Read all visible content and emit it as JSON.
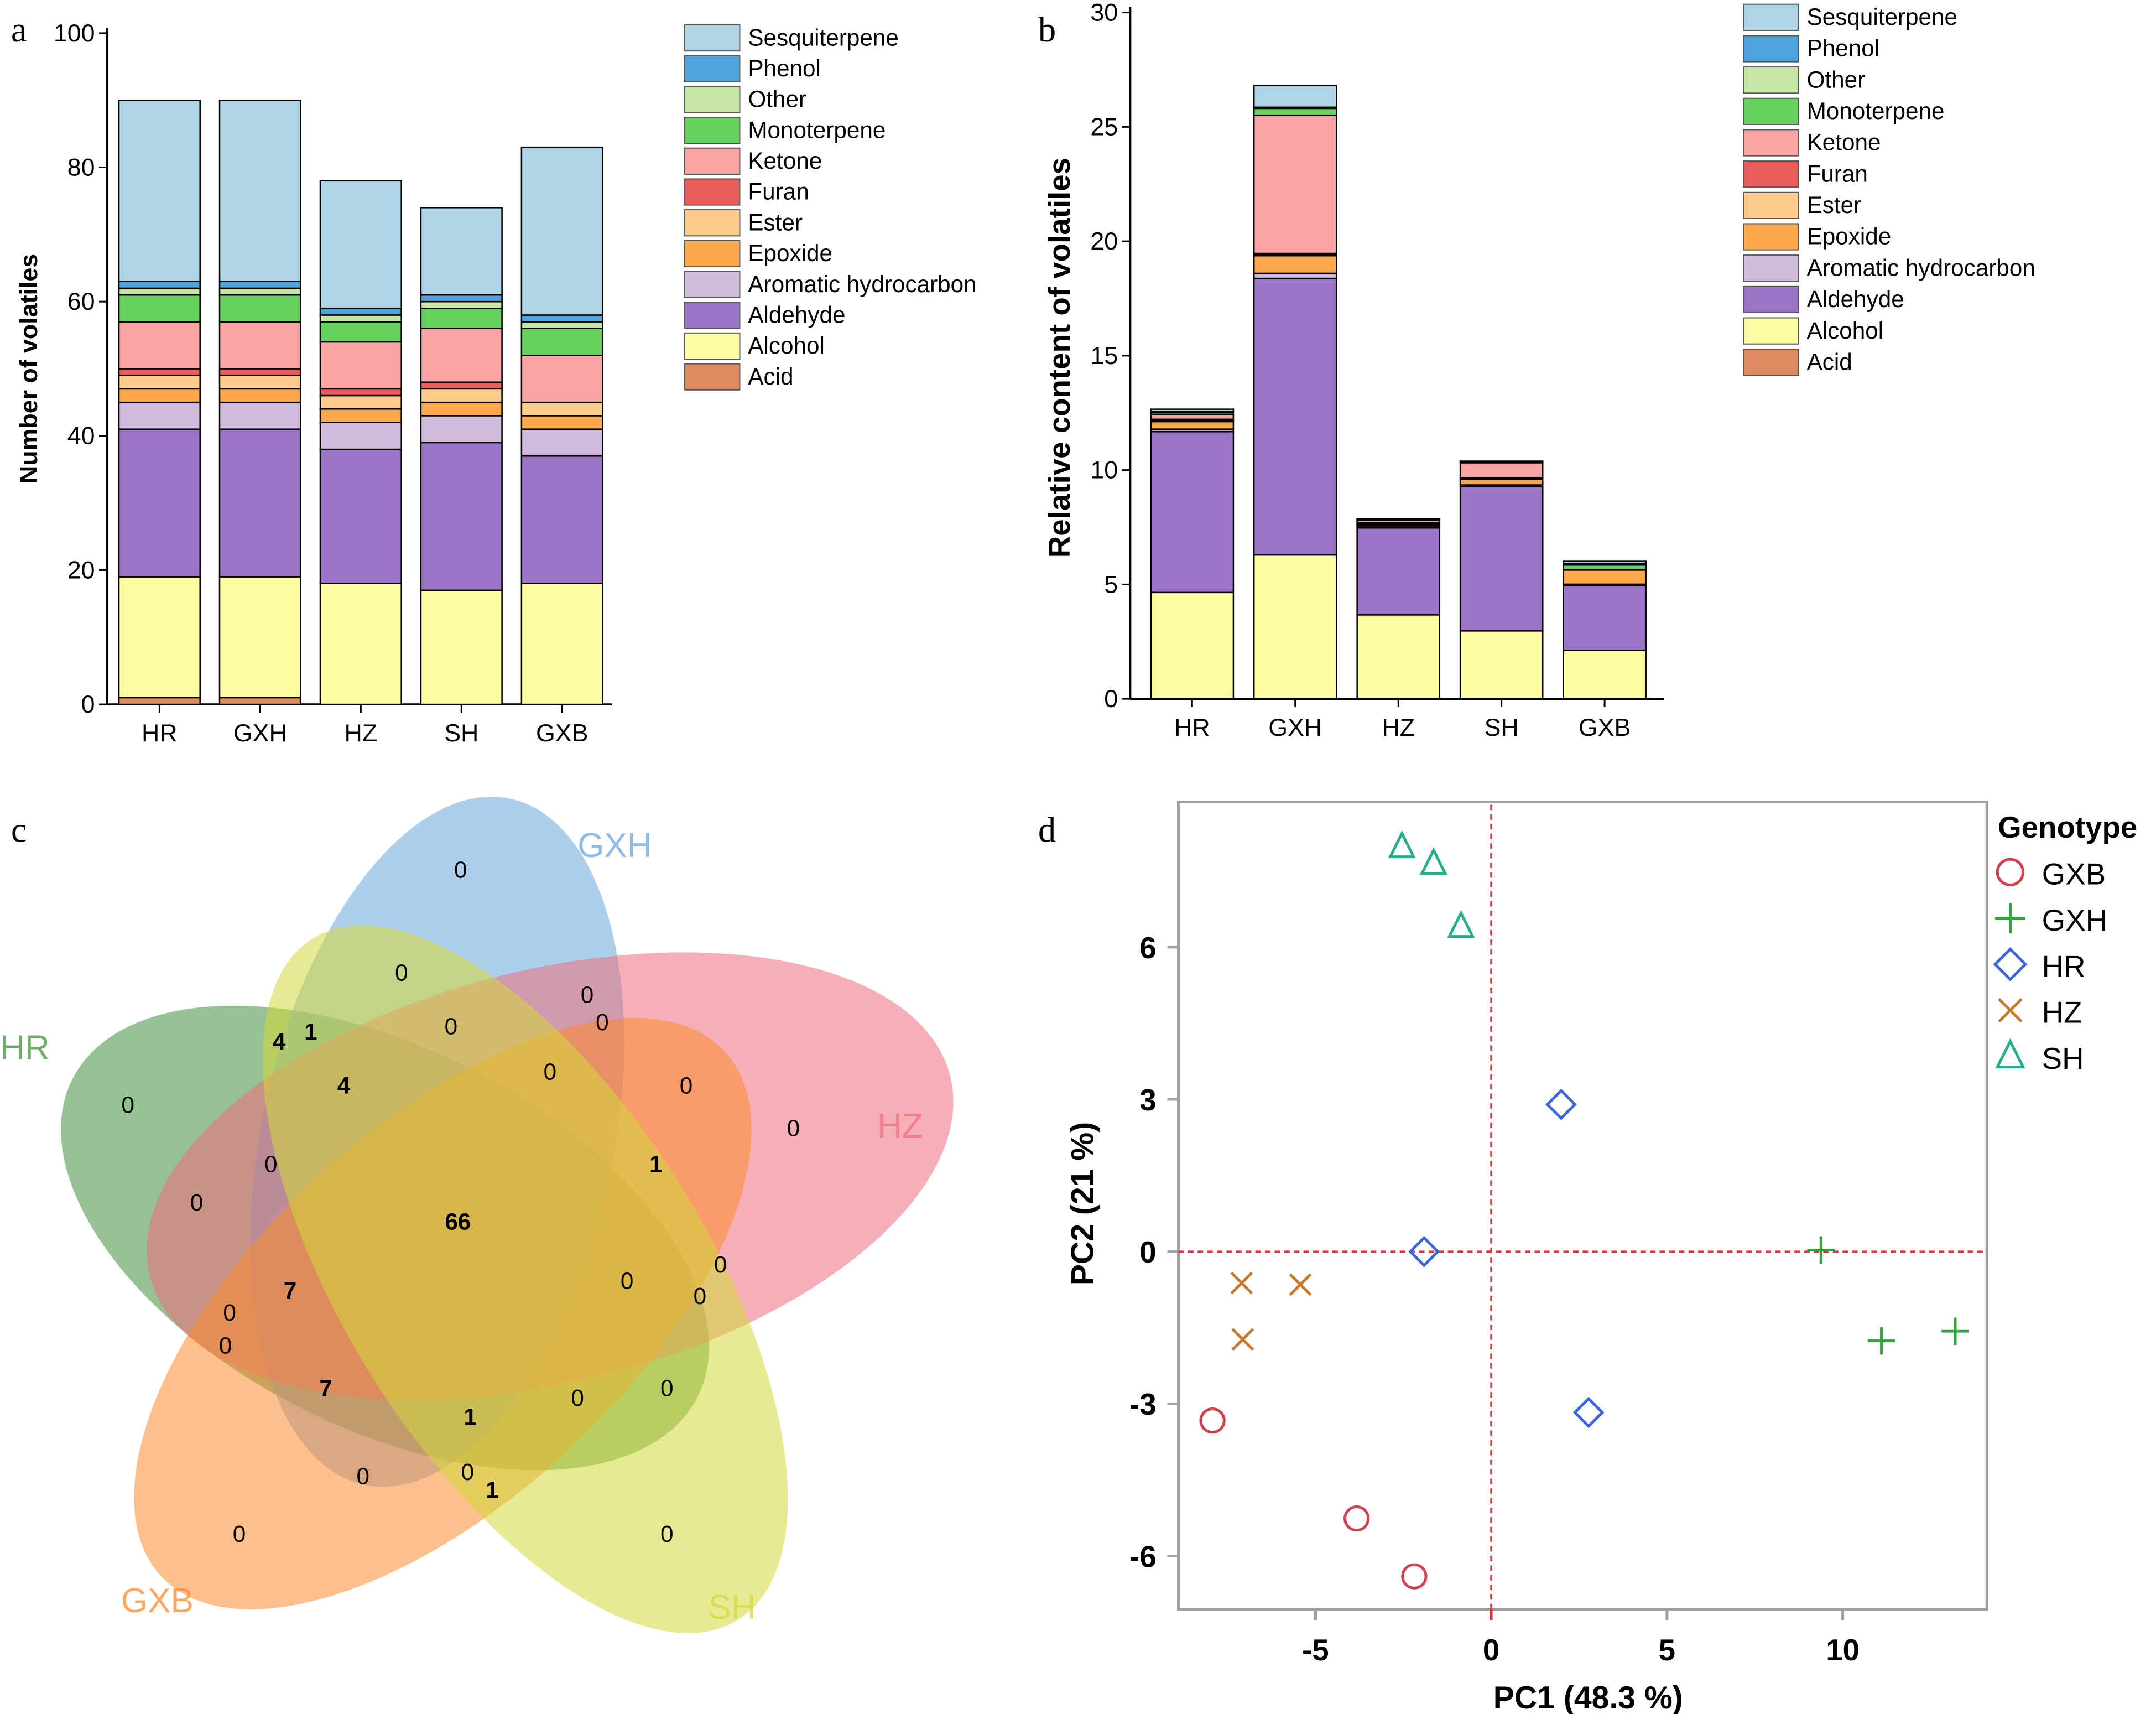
{
  "panels": {
    "a": "a",
    "b": "b",
    "c": "c",
    "d": "d"
  },
  "chart_data": [
    {
      "panel": "a",
      "type": "bar",
      "stacked": true,
      "ylabel": "Number of volatiles",
      "xlabel": "",
      "ylim": [
        0,
        100
      ],
      "yticks": [
        0,
        20,
        40,
        60,
        80,
        100
      ],
      "categories": [
        "HR",
        "GXH",
        "HZ",
        "SH",
        "GXB"
      ],
      "legend_position": "top-right",
      "series": [
        {
          "name": "Acid",
          "color": "#dd8a5e",
          "values": [
            1,
            1,
            0,
            0,
            0
          ]
        },
        {
          "name": "Alcohol",
          "color": "#fdfca0",
          "values": [
            18,
            18,
            18,
            17,
            18
          ]
        },
        {
          "name": "Aldehyde",
          "color": "#9b74c7",
          "values": [
            22,
            22,
            20,
            22,
            19
          ]
        },
        {
          "name": "Aromatic hydrocarbon",
          "color": "#d0bbdc",
          "values": [
            4,
            4,
            4,
            4,
            4
          ]
        },
        {
          "name": "Epoxide",
          "color": "#fea74d",
          "values": [
            2,
            2,
            2,
            2,
            2
          ]
        },
        {
          "name": "Ester",
          "color": "#fdcd8e",
          "values": [
            2,
            2,
            2,
            2,
            2
          ]
        },
        {
          "name": "Furan",
          "color": "#ea5b5b",
          "values": [
            1,
            1,
            1,
            1,
            0
          ]
        },
        {
          "name": "Ketone",
          "color": "#f9a4a4",
          "values": [
            7,
            7,
            7,
            8,
            7
          ]
        },
        {
          "name": "Monoterpene",
          "color": "#66d15e",
          "values": [
            4,
            4,
            3,
            3,
            4
          ]
        },
        {
          "name": "Other",
          "color": "#c5e6a5",
          "values": [
            1,
            1,
            1,
            1,
            1
          ]
        },
        {
          "name": "Phenol",
          "color": "#4fa3dc",
          "values": [
            1,
            1,
            1,
            1,
            1
          ]
        },
        {
          "name": "Sesquiterpene",
          "color": "#aed4e8",
          "values": [
            27,
            27,
            19,
            13,
            25
          ]
        }
      ]
    },
    {
      "panel": "b",
      "type": "bar",
      "stacked": true,
      "ylabel": "Relative content of volatiles",
      "xlabel": "",
      "ylim": [
        0,
        30
      ],
      "yticks": [
        0,
        5,
        10,
        15,
        20,
        25,
        30
      ],
      "categories": [
        "HR",
        "GXH",
        "HZ",
        "SH",
        "GXB"
      ],
      "legend_position": "top-right",
      "series": [
        {
          "name": "Acid",
          "color": "#dd8a5e",
          "values": [
            0,
            0,
            0,
            0,
            0
          ]
        },
        {
          "name": "Alcohol",
          "color": "#fdfca0",
          "values": [
            4.65,
            6.29,
            3.67,
            2.97,
            2.12
          ]
        },
        {
          "name": "Aldehyde",
          "color": "#9b74c7",
          "values": [
            7.03,
            12.09,
            3.8,
            6.31,
            2.84
          ]
        },
        {
          "name": "Aromatic hydrocarbon",
          "color": "#d0bbdc",
          "values": [
            0.11,
            0.22,
            0.05,
            0.07,
            0.05
          ]
        },
        {
          "name": "Epoxide",
          "color": "#fea74d",
          "values": [
            0.33,
            0.77,
            0.08,
            0.24,
            0.62
          ]
        },
        {
          "name": "Ester",
          "color": "#fdcd8e",
          "values": [
            0.05,
            0.05,
            0.04,
            0.03,
            0.02
          ]
        },
        {
          "name": "Furan",
          "color": "#ea5b5b",
          "values": [
            0.05,
            0.05,
            0.06,
            0.05,
            0
          ]
        },
        {
          "name": "Ketone",
          "color": "#f9a4a4",
          "values": [
            0.2,
            6.03,
            0.12,
            0.65,
            0
          ]
        },
        {
          "name": "Monoterpene",
          "color": "#66d15e",
          "values": [
            0.08,
            0.31,
            0.02,
            0.04,
            0.2
          ]
        },
        {
          "name": "Other",
          "color": "#c5e6a5",
          "values": [
            0.03,
            0.03,
            0.01,
            0.01,
            0.03
          ]
        },
        {
          "name": "Phenol",
          "color": "#4fa3dc",
          "values": [
            0.03,
            0.02,
            0.01,
            0.01,
            0.03
          ]
        },
        {
          "name": "Sesquiterpene",
          "color": "#aed4e8",
          "values": [
            0.1,
            0.95,
            0,
            0.01,
            0.1
          ]
        }
      ]
    },
    {
      "panel": "c",
      "type": "venn",
      "sets": [
        {
          "name": "HR",
          "color": "#3f8f3a"
        },
        {
          "name": "GXH",
          "color": "#6aa6dc"
        },
        {
          "name": "HZ",
          "color": "#ef6d7a"
        },
        {
          "name": "GXB",
          "color": "#fb8a2e"
        },
        {
          "name": "SH",
          "color": "#d3d93a"
        }
      ],
      "region_counts": [
        0,
        0,
        0,
        0,
        0,
        4,
        1,
        4,
        0,
        0,
        0,
        0,
        0,
        1,
        0,
        66,
        7,
        0,
        0,
        0,
        0,
        0,
        7,
        1,
        0,
        0,
        0,
        0,
        1,
        0,
        0
      ]
    },
    {
      "panel": "d",
      "type": "scatter",
      "xlabel": "PC1  (48.3 %)",
      "ylabel": "PC2  (21 %)",
      "xlim": [
        -8.9,
        14.1
      ],
      "ylim": [
        -7.05,
        8.86
      ],
      "xticks": [
        -5,
        0,
        5,
        10
      ],
      "yticks": [
        -6,
        -3,
        0,
        3,
        6
      ],
      "reference_lines": {
        "x": 0,
        "y": 0,
        "color": "#e8303a",
        "style": "dashed"
      },
      "legend_title": "Genotype",
      "legend_position": "right",
      "series": [
        {
          "name": "GXB",
          "marker": "circle",
          "color": "#d6404e",
          "points": [
            [
              -7.93,
              -3.33
            ],
            [
              -3.83,
              -5.26
            ],
            [
              -2.19,
              -6.4
            ]
          ]
        },
        {
          "name": "GXH",
          "marker": "plus",
          "color": "#2ea63a",
          "points": [
            [
              9.38,
              0.03
            ],
            [
              11.1,
              -1.76
            ],
            [
              13.2,
              -1.57
            ]
          ]
        },
        {
          "name": "HR",
          "marker": "diamond",
          "color": "#3b66d8",
          "points": [
            [
              1.99,
              2.9
            ],
            [
              -1.91,
              0
            ],
            [
              2.77,
              -3.17
            ]
          ]
        },
        {
          "name": "HZ",
          "marker": "cross",
          "color": "#c8782a",
          "points": [
            [
              -7.1,
              -0.62
            ],
            [
              -5.43,
              -0.65
            ],
            [
              -7.07,
              -1.73
            ]
          ]
        },
        {
          "name": "SH",
          "marker": "triangle",
          "color": "#22b08a",
          "points": [
            [
              -2.54,
              7.97
            ],
            [
              -1.64,
              7.64
            ],
            [
              -0.86,
              6.4
            ]
          ]
        }
      ]
    }
  ]
}
